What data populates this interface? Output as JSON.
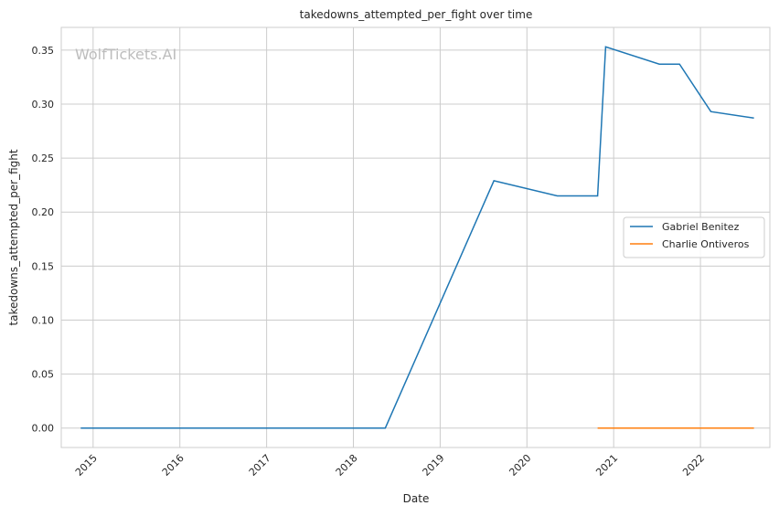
{
  "chart_data": {
    "type": "line",
    "title": "takedowns_attempted_per_fight over time",
    "xlabel": "Date",
    "ylabel": "takedowns_attempted_per_fight",
    "watermark": "WolfTickets.AI",
    "xlim": [
      "2014-08-20",
      "2022-10-20"
    ],
    "ylim": [
      -0.018,
      0.371
    ],
    "x_ticks": [
      "2015",
      "2016",
      "2017",
      "2018",
      "2019",
      "2020",
      "2021",
      "2022"
    ],
    "y_ticks": [
      "0.00",
      "0.05",
      "0.10",
      "0.15",
      "0.20",
      "0.25",
      "0.30",
      "0.35"
    ],
    "grid": true,
    "legend_position": "center-right",
    "series": [
      {
        "name": "Gabriel Benitez",
        "color": "#1f77b4",
        "x": [
          "2014-11-10",
          "2018-05-15",
          "2019-08-15",
          "2020-05-08",
          "2020-10-25",
          "2020-11-28",
          "2021-07-12",
          "2021-10-05",
          "2022-02-14",
          "2022-08-14"
        ],
        "y": [
          0.0,
          0.0,
          0.229,
          0.215,
          0.215,
          0.353,
          0.337,
          0.337,
          0.293,
          0.287
        ]
      },
      {
        "name": "Charlie Ontiveros",
        "color": "#ff7f0e",
        "x": [
          "2020-10-25",
          "2022-08-14"
        ],
        "y": [
          0.0,
          0.0
        ]
      }
    ]
  }
}
